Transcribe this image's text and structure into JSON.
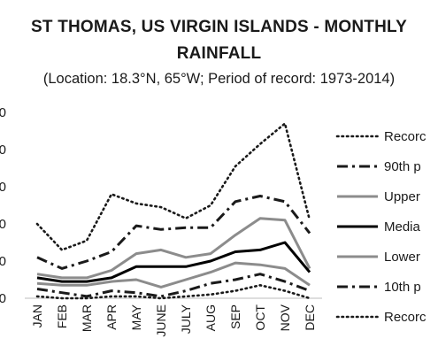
{
  "chart_data": {
    "type": "line",
    "title": "ST THOMAS, US VIRGIN ISLANDS - MONTHLY\nRAINFALL",
    "subtitle": "(Location: 18.3°N, 65°W; Period of record: 1973-2014)",
    "xlabel": "",
    "ylabel": "",
    "ylim": [
      0,
      10
    ],
    "yticks_visible": [
      "0",
      "0",
      "0",
      "0",
      "0",
      "0"
    ],
    "legend_position": "right",
    "grid": false,
    "categories": [
      "JAN",
      "FEB",
      "MAR",
      "APR",
      "MAY",
      "JUNE",
      "JULY",
      "AUG",
      "SEP",
      "OCT",
      "NOV",
      "DEC"
    ],
    "series": [
      {
        "name": "Recorc",
        "style": "dotted",
        "color": "#1a1a1a",
        "values": [
          4.0,
          2.6,
          3.1,
          5.6,
          5.1,
          4.9,
          4.3,
          5.0,
          7.1,
          8.3,
          9.4,
          4.2
        ]
      },
      {
        "name": "90th p",
        "style": "dashdot",
        "color": "#1a1a1a",
        "values": [
          2.2,
          1.6,
          2.0,
          2.5,
          3.9,
          3.7,
          3.8,
          3.8,
          5.2,
          5.5,
          5.2,
          3.5
        ]
      },
      {
        "name": "Upper",
        "style": "solid-gray",
        "color": "#8c8c8c",
        "values": [
          1.3,
          1.1,
          1.1,
          1.5,
          2.4,
          2.6,
          2.2,
          2.4,
          3.4,
          4.3,
          4.2,
          1.6
        ]
      },
      {
        "name": "Media",
        "style": "solid",
        "color": "#000000",
        "values": [
          1.1,
          0.9,
          0.9,
          1.1,
          1.7,
          1.7,
          1.7,
          2.0,
          2.5,
          2.6,
          3.0,
          1.4
        ]
      },
      {
        "name": "Lower",
        "style": "solid-gray",
        "color": "#8c8c8c",
        "values": [
          0.8,
          0.7,
          0.7,
          0.9,
          1.0,
          0.6,
          1.0,
          1.4,
          1.9,
          1.8,
          1.6,
          0.7
        ]
      },
      {
        "name": "10th p",
        "style": "dashdot",
        "color": "#1a1a1a",
        "values": [
          0.5,
          0.3,
          0.1,
          0.4,
          0.3,
          0.1,
          0.4,
          0.8,
          1.0,
          1.3,
          0.9,
          0.4
        ]
      },
      {
        "name": "Recorc",
        "style": "dotted",
        "color": "#1a1a1a",
        "values": [
          0.1,
          0.0,
          0.0,
          0.1,
          0.1,
          0.0,
          0.1,
          0.2,
          0.4,
          0.7,
          0.4,
          0.0
        ]
      }
    ]
  }
}
